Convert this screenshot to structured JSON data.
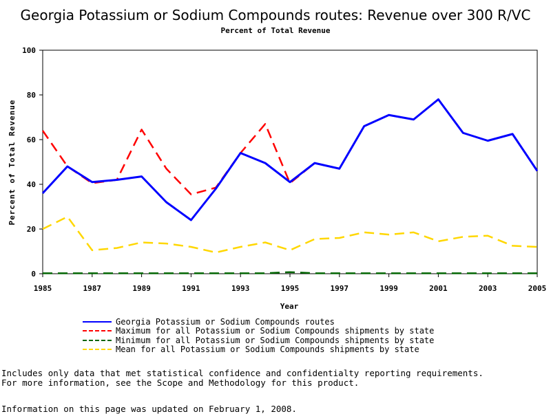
{
  "chart_data": {
    "type": "line",
    "title": "Georgia Potassium or Sodium Compounds routes: Revenue over 300 R/VC",
    "subtitle": "Percent of Total Revenue",
    "xlabel": "Year",
    "ylabel": "Percent of Total Revenue",
    "xlim": [
      1985,
      2005
    ],
    "ylim": [
      0,
      100
    ],
    "x_ticks": [
      "1985",
      "1987",
      "1989",
      "1991",
      "1993",
      "1995",
      "1997",
      "1999",
      "2001",
      "2003",
      "2005"
    ],
    "y_ticks": [
      "0",
      "20",
      "40",
      "60",
      "80",
      "100"
    ],
    "x": [
      1985,
      1986,
      1987,
      1988,
      1989,
      1990,
      1991,
      1992,
      1993,
      1994,
      1995,
      1996,
      1997,
      1998,
      1999,
      2000,
      2001,
      2002,
      2003,
      2004,
      2005
    ],
    "series": [
      {
        "name": "Georgia Potassium or Sodium Compounds routes",
        "color": "#0000ff",
        "style": "solid",
        "values": [
          36,
          48,
          41,
          42,
          43.5,
          32,
          24,
          38,
          54,
          49.5,
          41,
          49.5,
          47,
          66,
          71,
          69,
          78,
          63,
          59.5,
          62.5,
          46
        ]
      },
      {
        "name": "Maximum for all Potassium or Sodium Compounds shipments by state",
        "color": "#ff0000",
        "style": "dashed",
        "values": [
          64,
          48,
          40.5,
          42,
          64.5,
          47,
          35.5,
          38.5,
          54,
          67,
          40.5,
          49.5,
          47,
          66,
          71,
          69,
          78,
          63,
          59.5,
          62.5,
          46
        ]
      },
      {
        "name": "Minimum for all Potassium or Sodium Compounds shipments by state",
        "color": "#006400",
        "style": "dashed",
        "values": [
          0.2,
          0.2,
          0.2,
          0.2,
          0.2,
          0.2,
          0.2,
          0.2,
          0.2,
          0.2,
          0.7,
          0.2,
          0.2,
          0.2,
          0.2,
          0.2,
          0.2,
          0.2,
          0.2,
          0.2,
          0.2
        ]
      },
      {
        "name": "Mean for all Potassium or Sodium Compounds shipments by state",
        "color": "#ffd700",
        "style": "dashed",
        "values": [
          20,
          25.5,
          10.5,
          11.5,
          14,
          13.5,
          12,
          9.5,
          12,
          14,
          10.5,
          15.5,
          16,
          18.5,
          17.5,
          18.5,
          14.5,
          16.5,
          17,
          12.5,
          12
        ]
      }
    ],
    "grid": false,
    "legend_position": "bottom"
  },
  "notes": {
    "line1": "Includes only data that met statistical confidence and confidentialty reporting requirements.",
    "line2": "For more information, see the Scope and Methodology for this product.",
    "updated": "Information on this page was updated on February 1, 2008."
  }
}
